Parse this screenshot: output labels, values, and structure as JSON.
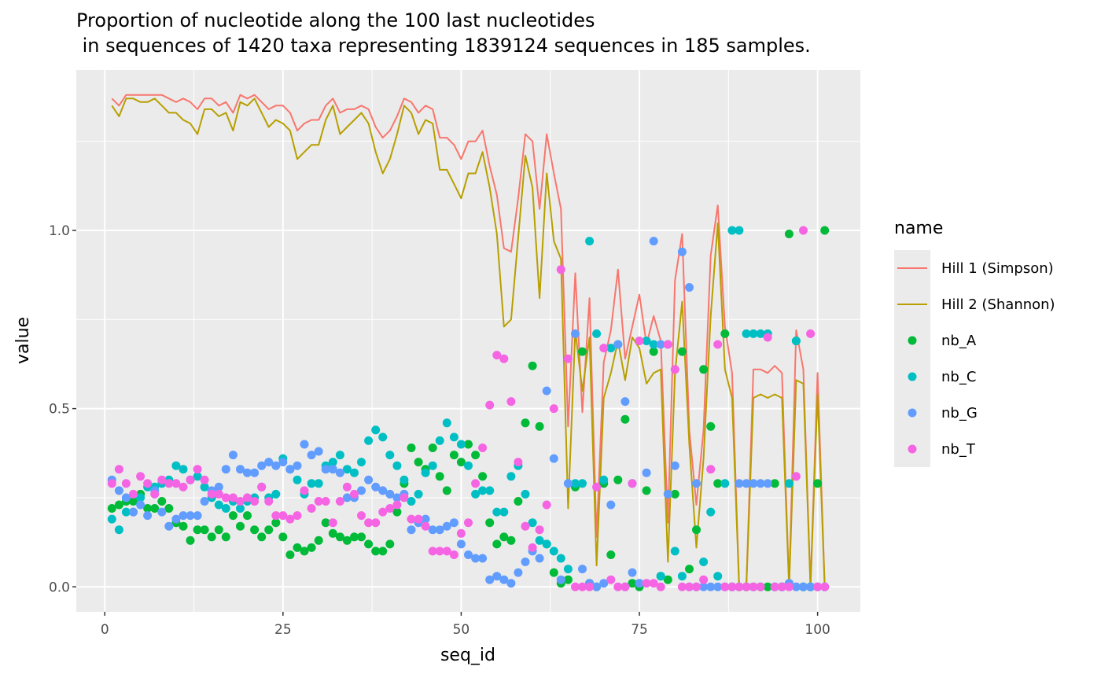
{
  "chart_data": {
    "type": "line+scatter",
    "title": "Proportion of nucleotide along the 100 last nucleotides",
    "subtitle": " in sequences of 1420 taxa representing 1839124 sequences in 185 samples.",
    "xlabel": "seq_id",
    "ylabel": "value",
    "xlim": [
      -4,
      106
    ],
    "ylim": [
      -0.07,
      1.45
    ],
    "xticks": [
      0,
      25,
      50,
      75,
      100
    ],
    "yticks": [
      0.0,
      0.5,
      1.0
    ],
    "ytick_labels": [
      "0.0",
      "0.5",
      "1.0"
    ],
    "grid": true,
    "legend_title": "name",
    "legend_position": "right",
    "series": [
      {
        "name": "Hill 1 (Simpson)",
        "kind": "line",
        "color": "#F8766D",
        "x": [
          1,
          2,
          3,
          4,
          5,
          6,
          7,
          8,
          9,
          10,
          11,
          12,
          13,
          14,
          15,
          16,
          17,
          18,
          19,
          20,
          21,
          22,
          23,
          24,
          25,
          26,
          27,
          28,
          29,
          30,
          31,
          32,
          33,
          34,
          35,
          36,
          37,
          38,
          39,
          40,
          41,
          42,
          43,
          44,
          45,
          46,
          47,
          48,
          49,
          50,
          51,
          52,
          53,
          54,
          55,
          56,
          57,
          58,
          59,
          60,
          61,
          62,
          63,
          64,
          65,
          66,
          67,
          68,
          69,
          70,
          71,
          72,
          73,
          74,
          75,
          76,
          77,
          78,
          79,
          80,
          81,
          82,
          83,
          84,
          85,
          86,
          87,
          88,
          89,
          90,
          91,
          92,
          93,
          94,
          95,
          96,
          97,
          98,
          99,
          100,
          101
        ],
        "values": [
          1.37,
          1.35,
          1.38,
          1.38,
          1.38,
          1.38,
          1.38,
          1.38,
          1.37,
          1.36,
          1.37,
          1.36,
          1.34,
          1.37,
          1.37,
          1.35,
          1.36,
          1.33,
          1.38,
          1.37,
          1.38,
          1.36,
          1.34,
          1.35,
          1.35,
          1.33,
          1.28,
          1.3,
          1.31,
          1.31,
          1.35,
          1.37,
          1.33,
          1.34,
          1.34,
          1.35,
          1.34,
          1.29,
          1.26,
          1.28,
          1.32,
          1.37,
          1.36,
          1.33,
          1.35,
          1.34,
          1.26,
          1.26,
          1.24,
          1.2,
          1.25,
          1.25,
          1.28,
          1.18,
          1.1,
          0.95,
          0.94,
          1.09,
          1.27,
          1.25,
          1.06,
          1.27,
          1.16,
          1.06,
          0.45,
          0.88,
          0.49,
          0.81,
          0.14,
          0.63,
          0.72,
          0.89,
          0.64,
          0.73,
          0.82,
          0.68,
          0.76,
          0.69,
          0.18,
          0.86,
          0.99,
          0.44,
          0.23,
          0.44,
          0.93,
          1.07,
          0.73,
          0.6,
          0.0,
          0.0,
          0.61,
          0.61,
          0.6,
          0.62,
          0.6,
          0.0,
          0.72,
          0.61,
          0.0,
          0.6,
          0.0
        ]
      },
      {
        "name": "Hill 2 (Shannon)",
        "kind": "line",
        "color": "#B79F00",
        "x": [
          1,
          2,
          3,
          4,
          5,
          6,
          7,
          8,
          9,
          10,
          11,
          12,
          13,
          14,
          15,
          16,
          17,
          18,
          19,
          20,
          21,
          22,
          23,
          24,
          25,
          26,
          27,
          28,
          29,
          30,
          31,
          32,
          33,
          34,
          35,
          36,
          37,
          38,
          39,
          40,
          41,
          42,
          43,
          44,
          45,
          46,
          47,
          48,
          49,
          50,
          51,
          52,
          53,
          54,
          55,
          56,
          57,
          58,
          59,
          60,
          61,
          62,
          63,
          64,
          65,
          66,
          67,
          68,
          69,
          70,
          71,
          72,
          73,
          74,
          75,
          76,
          77,
          78,
          79,
          80,
          81,
          82,
          83,
          84,
          85,
          86,
          87,
          88,
          89,
          90,
          91,
          92,
          93,
          94,
          95,
          96,
          97,
          98,
          99,
          100,
          101
        ],
        "values": [
          1.35,
          1.32,
          1.37,
          1.37,
          1.36,
          1.36,
          1.37,
          1.35,
          1.33,
          1.33,
          1.31,
          1.3,
          1.27,
          1.34,
          1.34,
          1.32,
          1.33,
          1.28,
          1.36,
          1.35,
          1.37,
          1.33,
          1.29,
          1.31,
          1.3,
          1.28,
          1.2,
          1.22,
          1.24,
          1.24,
          1.31,
          1.35,
          1.27,
          1.29,
          1.31,
          1.33,
          1.3,
          1.22,
          1.16,
          1.2,
          1.27,
          1.35,
          1.33,
          1.27,
          1.31,
          1.3,
          1.17,
          1.17,
          1.13,
          1.09,
          1.16,
          1.16,
          1.22,
          1.12,
          0.99,
          0.73,
          0.75,
          0.98,
          1.21,
          1.12,
          0.81,
          1.16,
          0.97,
          0.92,
          0.22,
          0.72,
          0.55,
          0.7,
          0.06,
          0.53,
          0.6,
          0.69,
          0.58,
          0.7,
          0.67,
          0.57,
          0.6,
          0.61,
          0.07,
          0.6,
          0.8,
          0.4,
          0.11,
          0.36,
          0.76,
          1.02,
          0.61,
          0.53,
          0.0,
          0.0,
          0.53,
          0.54,
          0.53,
          0.54,
          0.53,
          0.0,
          0.58,
          0.57,
          0.0,
          0.54,
          0.0
        ]
      },
      {
        "name": "nb_A",
        "kind": "point",
        "color": "#00BA38",
        "x": [
          1,
          2,
          3,
          4,
          5,
          6,
          7,
          8,
          9,
          10,
          11,
          12,
          13,
          14,
          15,
          16,
          17,
          18,
          19,
          20,
          21,
          22,
          23,
          24,
          25,
          26,
          27,
          28,
          29,
          30,
          31,
          32,
          33,
          34,
          35,
          36,
          37,
          38,
          39,
          40,
          41,
          42,
          43,
          44,
          45,
          46,
          47,
          48,
          49,
          50,
          51,
          52,
          53,
          54,
          55,
          56,
          57,
          58,
          59,
          60,
          61,
          62,
          63,
          64,
          65,
          66,
          67,
          68,
          69,
          70,
          71,
          72,
          73,
          74,
          75,
          76,
          77,
          78,
          79,
          80,
          81,
          82,
          83,
          84,
          85,
          86,
          87,
          88,
          89,
          90,
          91,
          92,
          93,
          94,
          95,
          96,
          97,
          98,
          99,
          100,
          101
        ],
        "values": [
          0.22,
          0.23,
          0.24,
          0.24,
          0.26,
          0.22,
          0.22,
          0.24,
          0.22,
          0.18,
          0.17,
          0.13,
          0.16,
          0.16,
          0.14,
          0.16,
          0.14,
          0.2,
          0.17,
          0.2,
          0.16,
          0.14,
          0.16,
          0.18,
          0.14,
          0.09,
          0.11,
          0.1,
          0.11,
          0.13,
          0.18,
          0.15,
          0.14,
          0.13,
          0.14,
          0.14,
          0.12,
          0.1,
          0.1,
          0.12,
          0.21,
          0.29,
          0.39,
          0.35,
          0.33,
          0.39,
          0.31,
          0.27,
          0.37,
          0.35,
          0.4,
          0.37,
          0.31,
          0.18,
          0.12,
          0.14,
          0.13,
          0.24,
          0.46,
          0.62,
          0.45,
          0.12,
          0.04,
          0.01,
          0.02,
          0.28,
          0.66,
          0.01,
          0.0,
          0.29,
          0.09,
          0.3,
          0.47,
          0.01,
          0.0,
          0.27,
          0.66,
          0.03,
          0.02,
          0.26,
          0.66,
          0.05,
          0.16,
          0.61,
          0.45,
          0.29,
          0.71,
          0.0,
          0.0,
          0.0,
          0.0,
          0.0,
          0.0,
          0.29,
          0.0,
          0.99,
          0.69,
          0.0,
          0.0,
          0.29,
          1.0
        ]
      },
      {
        "name": "nb_C",
        "kind": "point",
        "color": "#00BFC4",
        "x": [
          1,
          2,
          3,
          4,
          5,
          6,
          7,
          8,
          9,
          10,
          11,
          12,
          13,
          14,
          15,
          16,
          17,
          18,
          19,
          20,
          21,
          22,
          23,
          24,
          25,
          26,
          27,
          28,
          29,
          30,
          31,
          32,
          33,
          34,
          35,
          36,
          37,
          38,
          39,
          40,
          41,
          42,
          43,
          44,
          45,
          46,
          47,
          48,
          49,
          50,
          51,
          52,
          53,
          54,
          55,
          56,
          57,
          58,
          59,
          60,
          61,
          62,
          63,
          64,
          65,
          66,
          67,
          68,
          69,
          70,
          71,
          72,
          73,
          74,
          75,
          76,
          77,
          78,
          79,
          80,
          81,
          82,
          83,
          84,
          85,
          86,
          87,
          88,
          89,
          90,
          91,
          92,
          93,
          94,
          95,
          96,
          97,
          98,
          99,
          100,
          101
        ],
        "values": [
          0.19,
          0.16,
          0.21,
          0.21,
          0.25,
          0.28,
          0.28,
          0.29,
          0.3,
          0.34,
          0.33,
          0.3,
          0.31,
          0.28,
          0.25,
          0.23,
          0.22,
          0.24,
          0.22,
          0.24,
          0.25,
          0.28,
          0.25,
          0.26,
          0.36,
          0.33,
          0.3,
          0.26,
          0.29,
          0.29,
          0.34,
          0.35,
          0.37,
          0.33,
          0.32,
          0.35,
          0.41,
          0.44,
          0.42,
          0.37,
          0.34,
          0.3,
          0.24,
          0.26,
          0.32,
          0.34,
          0.41,
          0.46,
          0.42,
          0.4,
          0.34,
          0.26,
          0.27,
          0.27,
          0.21,
          0.21,
          0.31,
          0.34,
          0.26,
          0.18,
          0.13,
          0.12,
          0.1,
          0.08,
          0.05,
          0.29,
          0.29,
          0.97,
          0.71,
          0.3,
          0.67,
          0.68,
          0.0,
          0.29,
          0.01,
          0.69,
          0.68,
          0.03,
          0.68,
          0.1,
          0.03,
          0.0,
          0.0,
          0.07,
          0.21,
          0.03,
          0.29,
          1.0,
          1.0,
          0.71,
          0.71,
          0.71,
          0.71,
          0.0,
          0.0,
          0.29,
          0.69,
          0.0,
          0.0,
          0.0,
          0.0
        ]
      },
      {
        "name": "nb_G",
        "kind": "point",
        "color": "#619CFF",
        "x": [
          1,
          2,
          3,
          4,
          5,
          6,
          7,
          8,
          9,
          10,
          11,
          12,
          13,
          14,
          15,
          16,
          17,
          18,
          19,
          20,
          21,
          22,
          23,
          24,
          25,
          26,
          27,
          28,
          29,
          30,
          31,
          32,
          33,
          34,
          35,
          36,
          37,
          38,
          39,
          40,
          41,
          42,
          43,
          44,
          45,
          46,
          47,
          48,
          49,
          50,
          51,
          52,
          53,
          54,
          55,
          56,
          57,
          58,
          59,
          60,
          61,
          62,
          63,
          64,
          65,
          66,
          67,
          68,
          69,
          70,
          71,
          72,
          73,
          74,
          75,
          76,
          77,
          78,
          79,
          80,
          81,
          82,
          83,
          84,
          85,
          86,
          87,
          88,
          89,
          90,
          91,
          92,
          93,
          94,
          95,
          96,
          97,
          98,
          99,
          100,
          101
        ],
        "values": [
          0.3,
          0.27,
          0.25,
          0.21,
          0.23,
          0.2,
          0.27,
          0.21,
          0.17,
          0.19,
          0.2,
          0.2,
          0.2,
          0.24,
          0.27,
          0.28,
          0.33,
          0.37,
          0.33,
          0.32,
          0.32,
          0.34,
          0.35,
          0.34,
          0.35,
          0.33,
          0.34,
          0.4,
          0.37,
          0.38,
          0.33,
          0.33,
          0.32,
          0.25,
          0.25,
          0.27,
          0.3,
          0.28,
          0.27,
          0.26,
          0.25,
          0.26,
          0.16,
          0.18,
          0.19,
          0.16,
          0.16,
          0.17,
          0.18,
          0.12,
          0.09,
          0.08,
          0.08,
          0.02,
          0.03,
          0.02,
          0.01,
          0.04,
          0.07,
          0.1,
          0.08,
          0.55,
          0.36,
          0.02,
          0.29,
          0.71,
          0.05,
          0.01,
          0.0,
          0.01,
          0.23,
          0.68,
          0.52,
          0.04,
          0.01,
          0.32,
          0.97,
          0.68,
          0.26,
          0.34,
          0.94,
          0.84,
          0.29,
          0.0,
          0.0,
          0.0,
          0.0,
          0.0,
          0.29,
          0.29,
          0.29,
          0.29,
          0.29,
          0.0,
          0.0,
          0.01,
          0.0,
          0.0,
          0.0,
          0.0,
          0.0
        ]
      },
      {
        "name": "nb_T",
        "kind": "point",
        "color": "#F564E3",
        "x": [
          1,
          2,
          3,
          4,
          5,
          6,
          7,
          8,
          9,
          10,
          11,
          12,
          13,
          14,
          15,
          16,
          17,
          18,
          19,
          20,
          21,
          22,
          23,
          24,
          25,
          26,
          27,
          28,
          29,
          30,
          31,
          32,
          33,
          34,
          35,
          36,
          37,
          38,
          39,
          40,
          41,
          42,
          43,
          44,
          45,
          46,
          47,
          48,
          49,
          50,
          51,
          52,
          53,
          54,
          55,
          56,
          57,
          58,
          59,
          60,
          61,
          62,
          63,
          64,
          65,
          66,
          67,
          68,
          69,
          70,
          71,
          72,
          73,
          74,
          75,
          76,
          77,
          78,
          79,
          80,
          81,
          82,
          83,
          84,
          85,
          86,
          87,
          88,
          89,
          90,
          91,
          92,
          93,
          94,
          95,
          96,
          97,
          98,
          99,
          100,
          101
        ],
        "values": [
          0.29,
          0.33,
          0.29,
          0.26,
          0.31,
          0.29,
          0.26,
          0.3,
          0.29,
          0.29,
          0.28,
          0.3,
          0.33,
          0.3,
          0.26,
          0.26,
          0.25,
          0.25,
          0.24,
          0.25,
          0.24,
          0.28,
          0.24,
          0.2,
          0.2,
          0.19,
          0.2,
          0.27,
          0.22,
          0.24,
          0.24,
          0.18,
          0.24,
          0.28,
          0.26,
          0.2,
          0.18,
          0.18,
          0.21,
          0.22,
          0.23,
          0.25,
          0.19,
          0.19,
          0.17,
          0.1,
          0.1,
          0.1,
          0.09,
          0.15,
          0.18,
          0.29,
          0.39,
          0.51,
          0.65,
          0.64,
          0.52,
          0.35,
          0.17,
          0.11,
          0.16,
          0.23,
          0.5,
          0.89,
          0.64,
          0.0,
          0.0,
          0.0,
          0.28,
          0.67,
          0.02,
          0.0,
          0.0,
          0.29,
          0.69,
          0.01,
          0.01,
          0.0,
          0.68,
          0.61,
          0.0,
          0.0,
          0.0,
          0.02,
          0.33,
          0.68,
          0.0,
          0.0,
          0.0,
          0.0,
          0.0,
          0.0,
          0.7,
          0.0,
          0.0,
          0.0,
          0.31,
          1.0,
          0.71,
          0.0,
          0.0
        ]
      }
    ]
  }
}
